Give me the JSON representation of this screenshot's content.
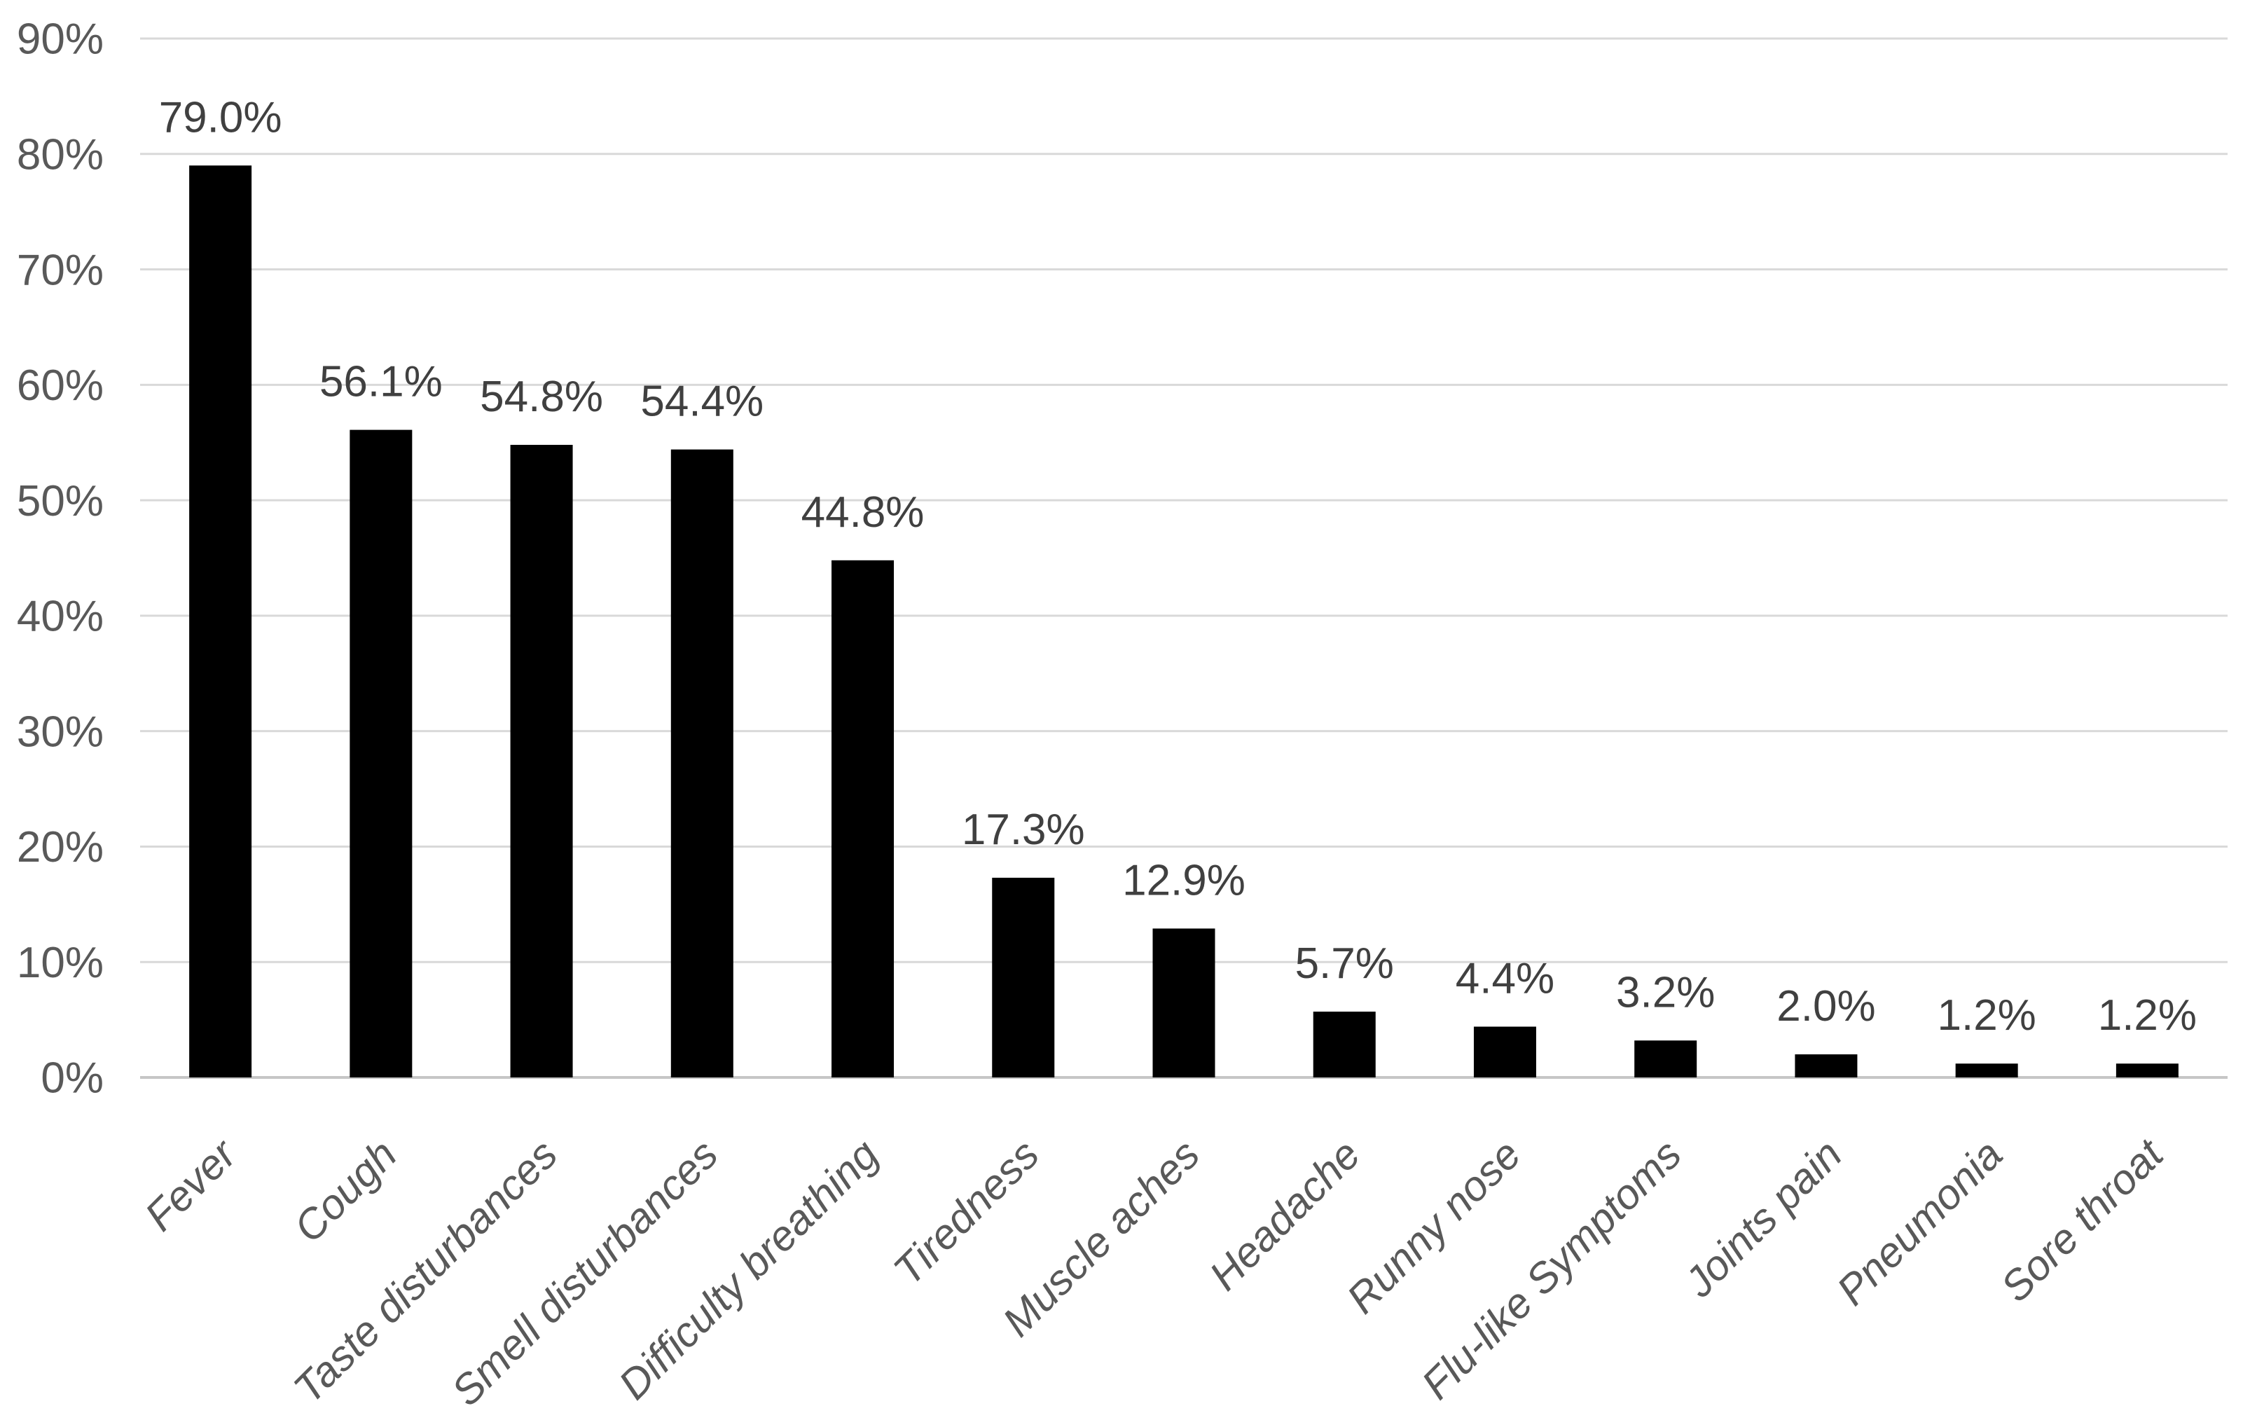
{
  "chart_data": {
    "type": "bar",
    "title": "",
    "xlabel": "",
    "ylabel": "",
    "categories": [
      "Fever",
      "Cough",
      "Taste disturbances",
      "Smell disturbances",
      "Difficulty breathing",
      "Tiredness",
      "Muscle aches",
      "Headache",
      "Runny nose",
      "Flu-like Symptoms",
      "Joints pain",
      "Pneumonia",
      "Sore throat"
    ],
    "values": [
      79.0,
      56.1,
      54.8,
      54.4,
      44.8,
      17.3,
      12.9,
      5.7,
      4.4,
      3.2,
      2.0,
      1.2,
      1.2
    ],
    "data_labels": [
      "79.0%",
      "56.1%",
      "54.8%",
      "54.4%",
      "44.8%",
      "17.3%",
      "12.9%",
      "5.7%",
      "4.4%",
      "3.2%",
      "2.0%",
      "1.2%",
      "1.2%"
    ],
    "ylim": [
      0,
      90
    ],
    "ytick_step": 10,
    "ytick_labels": [
      "0%",
      "10%",
      "20%",
      "30%",
      "40%",
      "50%",
      "60%",
      "70%",
      "80%",
      "90%"
    ],
    "grid": true,
    "legend": false,
    "colors": {
      "bar": "#000000",
      "gridline": "#d9d9d9",
      "axis_line": "#c6c6c6",
      "tick_label": "#595959",
      "data_label": "#404040",
      "background": "#ffffff"
    }
  }
}
